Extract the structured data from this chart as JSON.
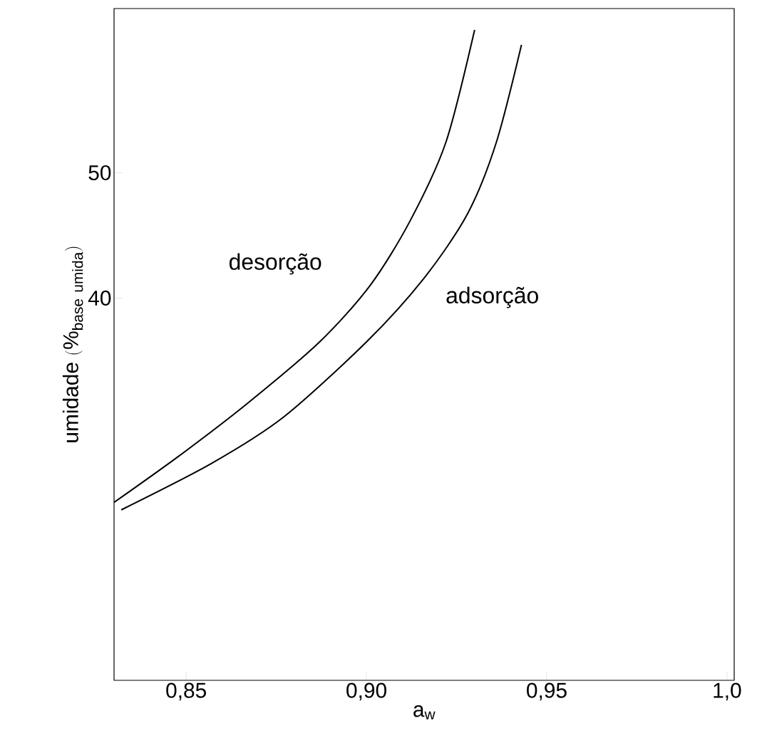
{
  "chart_data": {
    "type": "line",
    "xlabel": "\\mathrm{a_{w}}",
    "ylabel": "\\mathrm{umidade\\ (\\%_{base\\ umida})}",
    "xlim": [
      0.83,
      1.002
    ],
    "ylim": [
      9.5,
      63.1
    ],
    "xticks": [
      {
        "value": 0.85,
        "label": "0,85"
      },
      {
        "value": 0.9,
        "label": "0,90"
      },
      {
        "value": 0.95,
        "label": "0,95"
      },
      {
        "value": 1.0,
        "label": "1,0"
      }
    ],
    "yticks": [
      40,
      50
    ],
    "series": [
      {
        "x": [
          0.83,
          0.848,
          0.867,
          0.887,
          0.901,
          0.912,
          0.922,
          0.93
        ],
        "values": [
          23.7,
          27.4,
          31.6,
          36.5,
          41.0,
          46.1,
          52.4,
          61.4
        ],
        "color": "#000000"
      },
      {
        "x": [
          0.832,
          0.857,
          0.877,
          0.9,
          0.916,
          0.928,
          0.936,
          0.943
        ],
        "values": [
          23.1,
          26.8,
          30.5,
          36.5,
          41.6,
          46.7,
          52.4,
          60.2
        ],
        "color": "#000000"
      }
    ],
    "annotations": [
      "desorção",
      "adsorção"
    ],
    "marker": "none",
    "line_style": "solid"
  }
}
